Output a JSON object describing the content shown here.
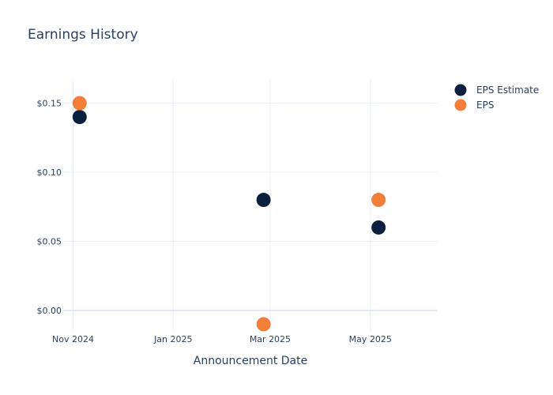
{
  "chart_data": {
    "type": "scatter",
    "title": "Earnings History",
    "xlabel": "Announcement Date",
    "ylabel": "",
    "x_ticks": [
      {
        "label": "Nov 2024",
        "date": "2024-11-01"
      },
      {
        "label": "Jan 2025",
        "date": "2025-01-01"
      },
      {
        "label": "Mar 2025",
        "date": "2025-03-01"
      },
      {
        "label": "May 2025",
        "date": "2025-05-01"
      }
    ],
    "y_ticks": [
      {
        "label": "$0.00",
        "value": 0.0
      },
      {
        "label": "$0.05",
        "value": 0.05
      },
      {
        "label": "$0.10",
        "value": 0.1
      },
      {
        "label": "$0.15",
        "value": 0.15
      }
    ],
    "xlim": [
      "2024-10-26",
      "2025-06-11"
    ],
    "ylim": [
      -0.0155,
      0.1675
    ],
    "grid": true,
    "legend_position": "top-right",
    "series": [
      {
        "name": "EPS Estimate",
        "color": "#0b1f3f",
        "points": [
          {
            "x": "2024-11-05",
            "y": 0.14
          },
          {
            "x": "2025-02-25",
            "y": 0.08
          },
          {
            "x": "2025-05-06",
            "y": 0.06
          }
        ]
      },
      {
        "name": "EPS",
        "color": "#f47f3a",
        "points": [
          {
            "x": "2024-11-05",
            "y": 0.15
          },
          {
            "x": "2025-02-25",
            "y": -0.01
          },
          {
            "x": "2025-05-06",
            "y": 0.08
          }
        ]
      }
    ]
  }
}
